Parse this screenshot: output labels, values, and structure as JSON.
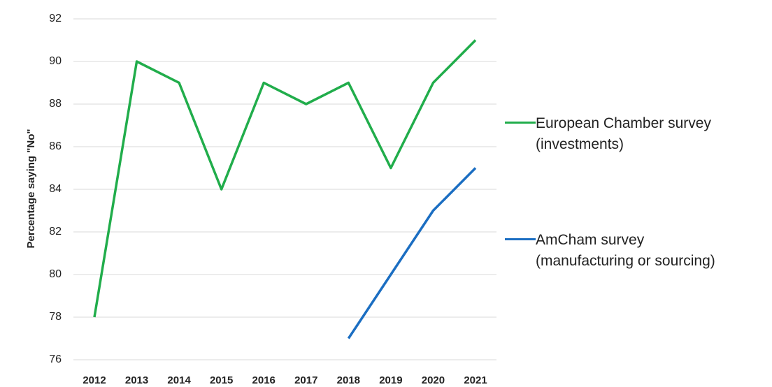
{
  "chart_data": {
    "type": "line",
    "y_label": "Percentage  saying \"No\"",
    "categories": [
      "2012",
      "2013",
      "2014",
      "2015",
      "2016",
      "2017",
      "2018",
      "2019",
      "2020",
      "2021"
    ],
    "series": [
      {
        "name": "European Chamber survey (investments)",
        "color": "#21ad4b",
        "values": [
          78,
          90,
          89,
          84,
          89,
          88,
          89,
          85,
          89,
          91
        ]
      },
      {
        "name": "AmCham survey (manufacturing or sourcing)",
        "color": "#1b6ec2",
        "values": [
          null,
          null,
          null,
          null,
          null,
          null,
          77,
          80,
          83,
          85
        ]
      }
    ],
    "ylim": [
      76,
      92
    ],
    "yticks": [
      76,
      78,
      80,
      82,
      84,
      86,
      88,
      90,
      92
    ],
    "grid": true,
    "legend": "right"
  }
}
